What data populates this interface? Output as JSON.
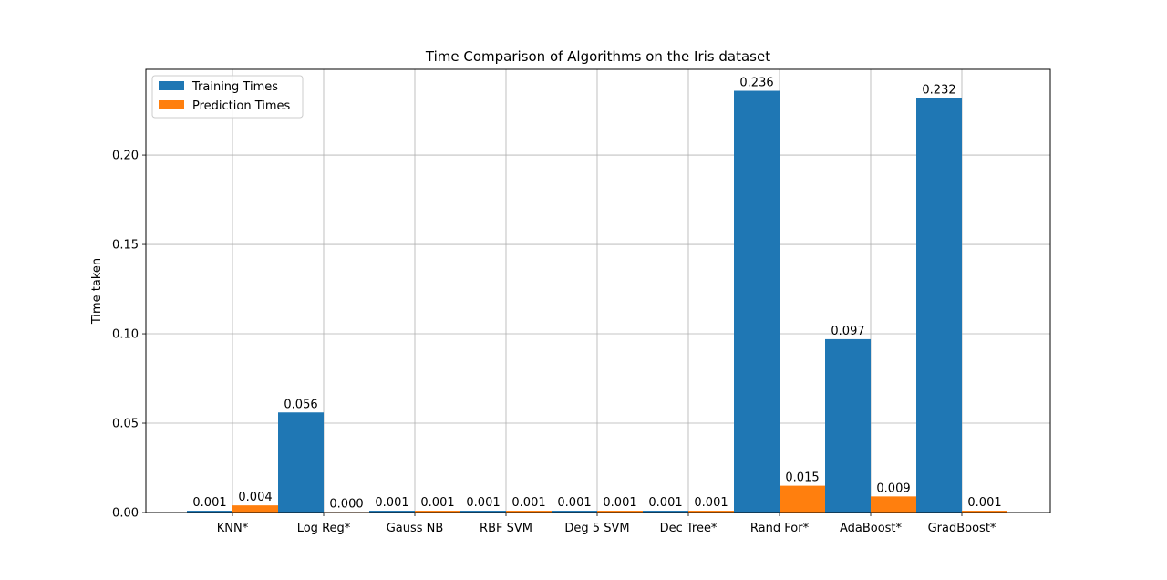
{
  "chart_data": {
    "type": "bar",
    "title": "Time Comparison of Algorithms on the Iris dataset",
    "xlabel": "",
    "ylabel": "Time taken",
    "categories": [
      "KNN*",
      "Log Reg*",
      "Gauss NB",
      "RBF SVM",
      "Deg 5 SVM",
      "Dec Tree*",
      "Rand For*",
      "AdaBoost*",
      "GradBoost*"
    ],
    "series": [
      {
        "name": "Training Times",
        "color": "#1f77b4",
        "values": [
          0.001,
          0.056,
          0.001,
          0.001,
          0.001,
          0.001,
          0.236,
          0.097,
          0.232
        ],
        "labels": [
          "0.001",
          "0.056",
          "0.001",
          "0.001",
          "0.001",
          "0.001",
          "0.236",
          "0.097",
          "0.232"
        ]
      },
      {
        "name": "Prediction Times",
        "color": "#ff7f0e",
        "values": [
          0.004,
          0.0003,
          0.001,
          0.001,
          0.001,
          0.001,
          0.015,
          0.009,
          0.001
        ],
        "labels": [
          "0.004",
          "0.000",
          "0.001",
          "0.001",
          "0.001",
          "0.001",
          "0.015",
          "0.009",
          "0.001"
        ]
      }
    ],
    "ylim": [
      0,
      0.248
    ],
    "yticks": [
      0.0,
      0.05,
      0.1,
      0.15,
      0.2
    ],
    "ytick_labels": [
      "0.00",
      "0.05",
      "0.10",
      "0.15",
      "0.20"
    ],
    "grid": true,
    "legend_position": "top-left"
  }
}
